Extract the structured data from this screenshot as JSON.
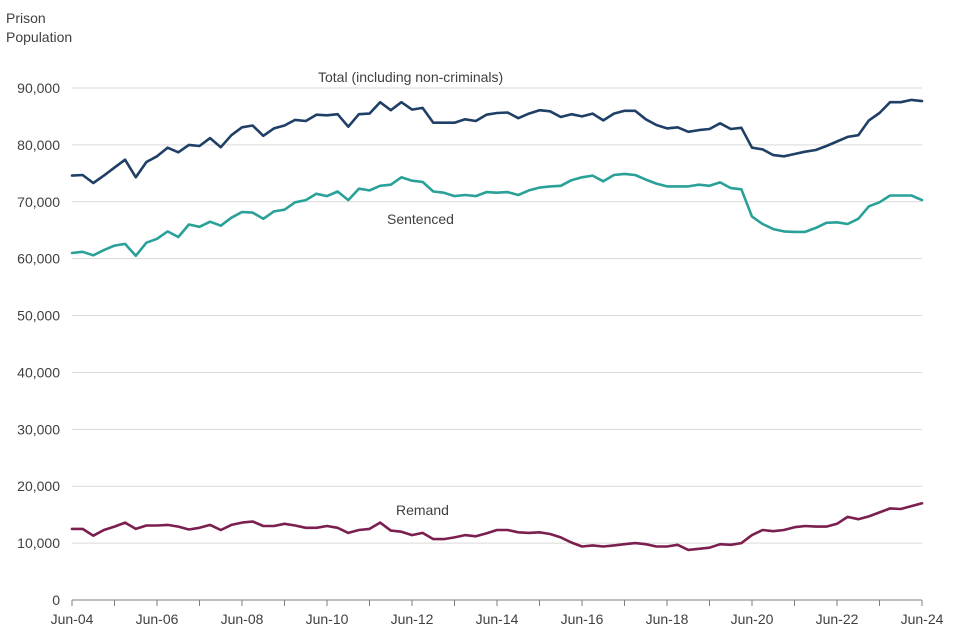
{
  "chart_data": {
    "type": "line",
    "ylabel_lines": [
      "Prison",
      "Population"
    ],
    "ylim": [
      0,
      90000
    ],
    "y_ticks": [
      0,
      10000,
      20000,
      30000,
      40000,
      50000,
      60000,
      70000,
      80000,
      90000
    ],
    "y_tick_labels": [
      "0",
      "10,000",
      "20,000",
      "30,000",
      "40,000",
      "50,000",
      "60,000",
      "70,000",
      "80,000",
      "90,000"
    ],
    "x_ticks": [
      2004,
      2006,
      2008,
      2010,
      2012,
      2014,
      2016,
      2018,
      2020,
      2022,
      2024
    ],
    "x_tick_labels": [
      "Jun-04",
      "Jun-06",
      "Jun-08",
      "Jun-10",
      "Jun-12",
      "Jun-14",
      "Jun-16",
      "Jun-18",
      "Jun-20",
      "Jun-22",
      "Jun-24"
    ],
    "xlim": [
      2004,
      2024
    ],
    "grid": true,
    "x": [
      2004.0,
      2004.25,
      2004.5,
      2004.75,
      2005.0,
      2005.25,
      2005.5,
      2005.75,
      2006.0,
      2006.25,
      2006.5,
      2006.75,
      2007.0,
      2007.25,
      2007.5,
      2007.75,
      2008.0,
      2008.25,
      2008.5,
      2008.75,
      2009.0,
      2009.25,
      2009.5,
      2009.75,
      2010.0,
      2010.25,
      2010.5,
      2010.75,
      2011.0,
      2011.25,
      2011.5,
      2011.75,
      2012.0,
      2012.25,
      2012.5,
      2012.75,
      2013.0,
      2013.25,
      2013.5,
      2013.75,
      2014.0,
      2014.25,
      2014.5,
      2014.75,
      2015.0,
      2015.25,
      2015.5,
      2015.75,
      2016.0,
      2016.25,
      2016.5,
      2016.75,
      2017.0,
      2017.25,
      2017.5,
      2017.75,
      2018.0,
      2018.25,
      2018.5,
      2018.75,
      2019.0,
      2019.25,
      2019.5,
      2019.75,
      2020.0,
      2020.25,
      2020.5,
      2020.75,
      2021.0,
      2021.25,
      2021.5,
      2021.75,
      2022.0,
      2022.25,
      2022.5,
      2022.75,
      2023.0,
      2023.25,
      2023.5,
      2023.75,
      2024.0
    ],
    "series": [
      {
        "name": "Total",
        "label": "Total (including non-criminals)",
        "color": "#1f3f67",
        "values": [
          74600,
          74700,
          73300,
          74600,
          76000,
          77400,
          74300,
          77000,
          78000,
          79500,
          78700,
          80000,
          79800,
          81200,
          79600,
          81700,
          83100,
          83400,
          81600,
          82900,
          83400,
          84400,
          84200,
          85300,
          85200,
          85400,
          83200,
          85400,
          85500,
          87500,
          86100,
          87500,
          86200,
          86500,
          83900,
          83900,
          83900,
          84500,
          84200,
          85300,
          85600,
          85700,
          84700,
          85500,
          86100,
          85900,
          84900,
          85400,
          85000,
          85500,
          84300,
          85500,
          86000,
          86000,
          84500,
          83500,
          82900,
          83100,
          82300,
          82600,
          82800,
          83800,
          82800,
          83000,
          79500,
          79200,
          78200,
          78000,
          78400,
          78800,
          79100,
          79800,
          80600,
          81400,
          81700,
          84300,
          85600,
          87500,
          87500,
          87900,
          87700
        ]
      },
      {
        "name": "Sentenced",
        "label": "Sentenced",
        "color": "#2aa198",
        "values": [
          61000,
          61200,
          60600,
          61500,
          62300,
          62600,
          60500,
          62800,
          63500,
          64800,
          63800,
          66000,
          65600,
          66500,
          65800,
          67200,
          68200,
          68100,
          67000,
          68300,
          68600,
          69900,
          70300,
          71400,
          71000,
          71800,
          70300,
          72300,
          72000,
          72800,
          73000,
          74300,
          73700,
          73500,
          71800,
          71600,
          71000,
          71200,
          71000,
          71700,
          71600,
          71700,
          71200,
          72000,
          72500,
          72700,
          72800,
          73800,
          74300,
          74600,
          73600,
          74700,
          74900,
          74700,
          73900,
          73200,
          72700,
          72700,
          72700,
          73000,
          72800,
          73400,
          72400,
          72200,
          67400,
          66100,
          65200,
          64800,
          64700,
          64700,
          65400,
          66300,
          66400,
          66100,
          67000,
          69200,
          69900,
          71100,
          71100,
          71100,
          70300
        ]
      },
      {
        "name": "Remand",
        "label": "Remand",
        "color": "#7b1f4e",
        "values": [
          12500,
          12500,
          11300,
          12300,
          12900,
          13600,
          12500,
          13100,
          13100,
          13200,
          12900,
          12400,
          12700,
          13200,
          12300,
          13200,
          13600,
          13800,
          13000,
          13000,
          13400,
          13100,
          12700,
          12700,
          13000,
          12700,
          11800,
          12300,
          12500,
          13600,
          12200,
          12000,
          11400,
          11800,
          10700,
          10700,
          11000,
          11400,
          11200,
          11700,
          12300,
          12300,
          11900,
          11800,
          11900,
          11600,
          11000,
          10100,
          9400,
          9600,
          9400,
          9600,
          9800,
          10000,
          9800,
          9400,
          9400,
          9700,
          8800,
          9000,
          9200,
          9800,
          9700,
          10000,
          11400,
          12300,
          12100,
          12300,
          12800,
          13000,
          12900,
          12900,
          13400,
          14600,
          14200,
          14700,
          15400,
          16100,
          16000,
          16500,
          17000
        ]
      }
    ]
  }
}
